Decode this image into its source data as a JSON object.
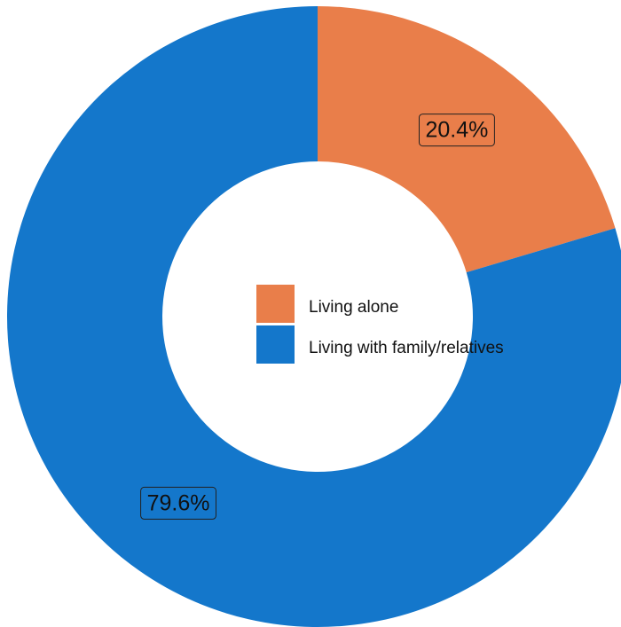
{
  "chart_data": {
    "type": "pie",
    "style": "donut",
    "categories": [
      "Living alone",
      "Living with family/relatives"
    ],
    "values": [
      20.4,
      79.6
    ],
    "value_labels": [
      "20.4%",
      "79.6%"
    ],
    "colors": [
      "#E97E4A",
      "#1477CB"
    ],
    "start_angle": "12 o'clock",
    "direction": "clockwise",
    "legend_position": "center",
    "legend": [
      {
        "label": "Living alone",
        "color": "#E97E4A"
      },
      {
        "label": "Living with family/relatives",
        "color": "#1477CB"
      }
    ]
  }
}
